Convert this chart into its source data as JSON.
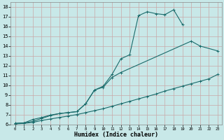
{
  "xlabel": "Humidex (Indice chaleur)",
  "background_color": "#c8e8e8",
  "grid_color": "#c8a8a8",
  "line_color": "#1a6b6b",
  "xlim": [
    -0.5,
    23.5
  ],
  "ylim": [
    6,
    18.5
  ],
  "xticks": [
    0,
    1,
    2,
    3,
    4,
    5,
    6,
    7,
    8,
    9,
    10,
    11,
    12,
    13,
    14,
    15,
    16,
    17,
    18,
    19,
    20,
    21,
    22,
    23
  ],
  "yticks": [
    6,
    7,
    8,
    9,
    10,
    11,
    12,
    13,
    14,
    15,
    16,
    17,
    18
  ],
  "curve1_x": [
    0,
    1,
    2,
    3,
    4,
    5,
    6,
    7,
    8,
    9,
    10,
    11,
    12,
    13,
    14,
    15,
    16,
    17,
    18,
    19
  ],
  "curve1_y": [
    6.1,
    6.15,
    6.5,
    6.7,
    6.95,
    7.1,
    7.2,
    7.3,
    8.1,
    9.5,
    9.9,
    11.1,
    12.7,
    13.1,
    17.1,
    17.5,
    17.3,
    17.2,
    17.7,
    16.2
  ],
  "curve2_x": [
    0,
    1,
    2,
    3,
    4,
    5,
    6,
    7,
    8,
    9,
    10,
    11,
    12,
    20,
    21,
    23
  ],
  "curve2_y": [
    6.1,
    6.15,
    6.3,
    6.6,
    6.9,
    7.1,
    7.2,
    7.3,
    8.1,
    9.5,
    9.8,
    10.8,
    11.3,
    14.5,
    14.0,
    13.5
  ],
  "curve3_x": [
    0,
    1,
    2,
    3,
    4,
    5,
    6,
    7,
    8,
    9,
    10,
    11,
    12,
    13,
    14,
    15,
    16,
    17,
    18,
    19,
    20,
    21,
    22,
    23
  ],
  "curve3_y": [
    6.05,
    6.1,
    6.2,
    6.4,
    6.55,
    6.7,
    6.85,
    7.0,
    7.2,
    7.4,
    7.6,
    7.85,
    8.1,
    8.35,
    8.6,
    8.85,
    9.1,
    9.4,
    9.65,
    9.9,
    10.15,
    10.4,
    10.65,
    11.1
  ]
}
